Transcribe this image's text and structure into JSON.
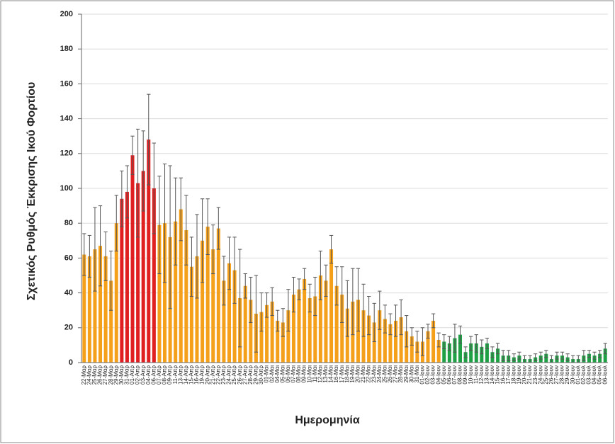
{
  "chart_data": {
    "type": "bar",
    "ylabel": "Σχετικός Ρυθμός Έκκρισης Ικού Φορτίου",
    "xlabel": "Ημερομηνία",
    "categories": [
      "22-Μαρ",
      "24-Μαρ",
      "25-Μαρ",
      "26-Μαρ",
      "27-Μαρ",
      "28-Μαρ",
      "29-Μαρ",
      "30-Μαρ",
      "31-Μαρ",
      "01-Απρ",
      "02-Απρ",
      "03-Απρ",
      "04-Απρ",
      "06-Απρ",
      "07-Απρ",
      "08-Απρ",
      "09-Απρ",
      "11-Απρ",
      "13-Απρ",
      "14-Απρ",
      "15-Απρ",
      "16-Απρ",
      "19-Απρ",
      "20-Απρ",
      "21-Απρ",
      "22-Απρ",
      "23-Απρ",
      "24-Απρ",
      "25-Απρ",
      "26-Απρ",
      "27-Απρ",
      "28-Απρ",
      "29-Απρ",
      "30-Απρ",
      "01-Μαι",
      "02-Μαι",
      "04-Μαι",
      "05-Μαι",
      "06-Μαι",
      "07-Μαι",
      "08-Μαι",
      "09-Μαι",
      "10-Μαι",
      "11-Μαι",
      "12-Μαι",
      "13-Μαι",
      "14-Μαι",
      "16-Μαι",
      "17-Μαι",
      "18-Μαι",
      "19-Μαι",
      "20-Μαι",
      "21-Μαι",
      "22-Μαι",
      "23-Μαι",
      "24-Μαι",
      "25-Μαι",
      "26-Μαι",
      "27-Μαι",
      "28-Μαι",
      "29-Μαι",
      "30-Μαι",
      "31-Μαι",
      "01-Ιουν",
      "02-Ιουν",
      "03-Ιουν",
      "04-Ιουν",
      "05-Ιουν",
      "06-Ιουν",
      "07-Ιουν",
      "08-Ιουν",
      "09-Ιουν",
      "10-Ιουν",
      "11-Ιουν",
      "12-Ιουν",
      "13-Ιουν",
      "14-Ιουν",
      "15-Ιουν",
      "16-Ιουν",
      "17-Ιουν",
      "18-Ιουν",
      "19-Ιουν",
      "20-Ιουν",
      "21-Ιουν",
      "23-Ιουν",
      "24-Ιουν",
      "25-Ιουν",
      "26-Ιουν",
      "27-Ιουν",
      "28-Ιουν",
      "29-Ιουν",
      "30-Ιουν",
      "01-Ιουλ",
      "02-Ιουλ",
      "03-Ιουλ",
      "04-Ιουλ",
      "05-Ιουλ",
      "06-Ιουλ"
    ],
    "values": [
      62,
      61,
      65,
      67,
      61,
      47,
      80,
      94,
      98,
      119,
      103,
      110,
      128,
      100,
      79,
      80,
      72,
      81,
      88,
      76,
      55,
      61,
      70,
      78,
      65,
      77,
      47,
      57,
      53,
      37,
      44,
      36,
      28,
      29,
      33,
      35,
      24,
      23,
      30,
      39,
      42,
      48,
      37,
      38,
      50,
      47,
      65,
      44,
      39,
      31,
      35,
      36,
      30,
      27,
      23,
      30,
      25,
      22,
      24,
      26,
      18,
      15,
      12,
      12,
      18,
      24,
      13,
      12,
      11,
      14,
      16,
      6,
      11,
      11,
      9,
      11,
      6,
      8,
      4,
      4,
      3,
      4,
      2,
      2,
      3,
      4,
      5,
      2,
      4,
      4,
      3,
      2,
      2,
      4,
      5,
      4,
      5,
      8
    ],
    "errors": [
      12,
      12,
      24,
      23,
      14,
      17,
      16,
      16,
      15,
      11,
      31,
      23,
      26,
      26,
      28,
      34,
      41,
      25,
      18,
      20,
      17,
      24,
      24,
      16,
      14,
      12,
      14,
      15,
      19,
      28,
      7,
      13,
      22,
      11,
      7,
      8,
      6,
      8,
      12,
      10,
      6,
      6,
      8,
      11,
      14,
      9,
      8,
      11,
      16,
      16,
      19,
      18,
      15,
      11,
      11,
      11,
      8,
      6,
      9,
      10,
      9,
      5,
      6,
      8,
      4,
      4,
      4,
      4,
      4,
      8,
      5,
      3,
      4,
      5,
      4,
      3,
      3,
      3,
      3,
      3,
      2,
      2,
      2,
      2,
      2,
      2,
      2,
      2,
      2,
      2,
      2,
      2,
      2,
      3,
      2,
      2,
      2,
      3
    ],
    "colors": [
      "#f5a01a",
      "#f5a01a",
      "#f5a01a",
      "#f5a01a",
      "#f5a01a",
      "#f5a01a",
      "#f5a01a",
      "#e02020",
      "#e02020",
      "#e02020",
      "#e02020",
      "#e02020",
      "#e02020",
      "#e02020",
      "#f5a01a",
      "#f5a01a",
      "#f5a01a",
      "#f5a01a",
      "#f5a01a",
      "#f5a01a",
      "#f5a01a",
      "#f5a01a",
      "#f5a01a",
      "#f5a01a",
      "#f5a01a",
      "#f5a01a",
      "#f5a01a",
      "#f5a01a",
      "#f5a01a",
      "#f5a01a",
      "#f5a01a",
      "#f5a01a",
      "#f5a01a",
      "#f5a01a",
      "#f5a01a",
      "#f5a01a",
      "#f5a01a",
      "#f5a01a",
      "#f5a01a",
      "#f5a01a",
      "#f5a01a",
      "#f5a01a",
      "#f5a01a",
      "#f5a01a",
      "#f5a01a",
      "#f5a01a",
      "#f5a01a",
      "#f5a01a",
      "#f5a01a",
      "#f5a01a",
      "#f5a01a",
      "#f5a01a",
      "#f5a01a",
      "#f5a01a",
      "#f5a01a",
      "#f5a01a",
      "#f5a01a",
      "#f5a01a",
      "#f5a01a",
      "#f5a01a",
      "#f5a01a",
      "#f5a01a",
      "#f5a01a",
      "#f5a01a",
      "#f5a01a",
      "#f5a01a",
      "#f5a01a",
      "#1fa045",
      "#1fa045",
      "#1fa045",
      "#1fa045",
      "#1fa045",
      "#1fa045",
      "#1fa045",
      "#1fa045",
      "#1fa045",
      "#1fa045",
      "#1fa045",
      "#1fa045",
      "#1fa045",
      "#1fa045",
      "#1fa045",
      "#1fa045",
      "#1fa045",
      "#1fa045",
      "#1fa045",
      "#1fa045",
      "#1fa045",
      "#1fa045",
      "#1fa045",
      "#1fa045",
      "#1fa045",
      "#1fa045",
      "#1fa045",
      "#1fa045",
      "#1fa045",
      "#1fa045",
      "#1fa045"
    ],
    "error_color": "#555555",
    "ylim": [
      0,
      200
    ],
    "yticks": [
      0,
      20,
      40,
      60,
      80,
      100,
      120,
      140,
      160,
      180,
      200
    ],
    "grid": true
  }
}
